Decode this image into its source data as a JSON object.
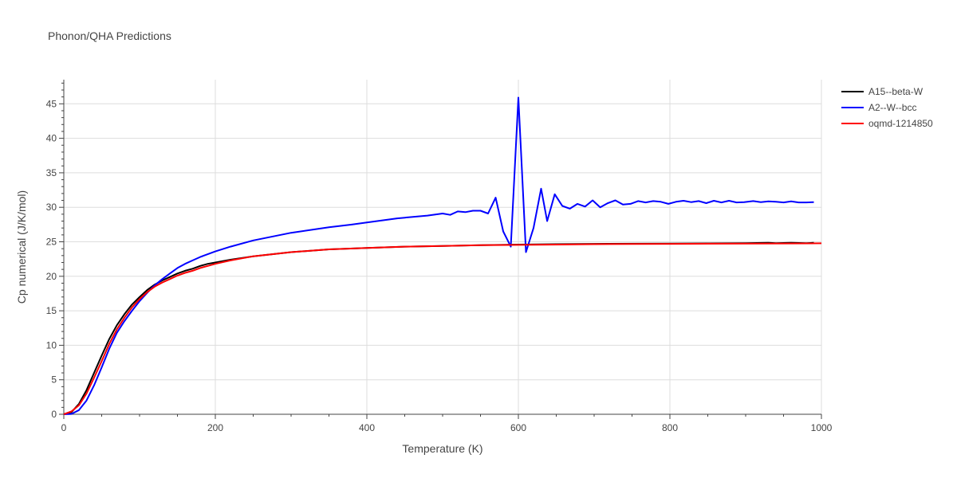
{
  "chart_data": {
    "type": "line",
    "title": "Phonon/QHA Predictions",
    "xlabel": "Temperature (K)",
    "ylabel": "Cp numerical (J/K/mol)",
    "xlim": [
      0,
      1000
    ],
    "ylim": [
      0,
      48.5
    ],
    "xticks": [
      0,
      200,
      400,
      600,
      800,
      1000
    ],
    "yticks": [
      0,
      5,
      10,
      15,
      20,
      25,
      30,
      35,
      40,
      45
    ],
    "grid": true,
    "legend_position": "top-right",
    "series": [
      {
        "name": "A15--beta-W",
        "color": "#000000",
        "x": [
          0,
          10,
          20,
          30,
          40,
          50,
          60,
          70,
          80,
          90,
          100,
          110,
          120,
          130,
          140,
          150,
          160,
          170,
          180,
          190,
          200,
          220,
          250,
          300,
          350,
          400,
          450,
          500,
          550,
          600,
          650,
          700,
          750,
          800,
          850,
          900,
          930,
          940,
          960,
          980,
          990
        ],
        "y": [
          0,
          0.3,
          1.5,
          3.5,
          6.0,
          8.5,
          10.9,
          12.9,
          14.5,
          15.9,
          17.0,
          18.0,
          18.8,
          19.4,
          19.9,
          20.4,
          20.8,
          21.1,
          21.5,
          21.8,
          22.0,
          22.4,
          22.9,
          23.5,
          23.9,
          24.1,
          24.3,
          24.4,
          24.5,
          24.6,
          24.65,
          24.7,
          24.72,
          24.75,
          24.77,
          24.8,
          24.85,
          24.8,
          24.85,
          24.8,
          24.85
        ]
      },
      {
        "name": "A2--W--bcc",
        "color": "#0000ff",
        "x": [
          0,
          10,
          20,
          30,
          40,
          50,
          60,
          70,
          80,
          90,
          100,
          110,
          120,
          130,
          140,
          150,
          160,
          170,
          180,
          190,
          200,
          220,
          250,
          300,
          350,
          380,
          400,
          440,
          480,
          500,
          510,
          520,
          530,
          540,
          550,
          560,
          570,
          580,
          590,
          600,
          610,
          620,
          630,
          638,
          648,
          658,
          668,
          678,
          688,
          698,
          708,
          718,
          728,
          738,
          748,
          758,
          768,
          778,
          788,
          798,
          808,
          818,
          828,
          838,
          848,
          858,
          868,
          878,
          888,
          898,
          910,
          920,
          930,
          940,
          950,
          960,
          970,
          980,
          990
        ],
        "y": [
          0,
          0.05,
          0.6,
          2.0,
          4.2,
          6.8,
          9.5,
          11.8,
          13.5,
          15.0,
          16.4,
          17.6,
          18.7,
          19.6,
          20.4,
          21.2,
          21.8,
          22.3,
          22.8,
          23.2,
          23.6,
          24.3,
          25.2,
          26.3,
          27.1,
          27.5,
          27.8,
          28.4,
          28.8,
          29.1,
          28.9,
          29.4,
          29.3,
          29.5,
          29.5,
          29.1,
          31.4,
          26.5,
          24.3,
          45.9,
          23.5,
          27.0,
          32.7,
          28.0,
          31.9,
          30.2,
          29.8,
          30.5,
          30.1,
          31.0,
          30.0,
          30.6,
          31.0,
          30.4,
          30.5,
          30.9,
          30.7,
          30.9,
          30.8,
          30.5,
          30.8,
          30.95,
          30.75,
          30.9,
          30.6,
          30.95,
          30.7,
          30.95,
          30.7,
          30.75,
          30.9,
          30.75,
          30.85,
          30.8,
          30.7,
          30.85,
          30.7,
          30.7,
          30.75
        ]
      },
      {
        "name": "oqmd-1214850",
        "color": "#ff0000",
        "x": [
          0,
          10,
          20,
          30,
          40,
          50,
          60,
          70,
          80,
          90,
          100,
          110,
          120,
          130,
          140,
          150,
          160,
          170,
          180,
          190,
          200,
          220,
          250,
          300,
          350,
          400,
          450,
          500,
          550,
          600,
          650,
          700,
          750,
          800,
          850,
          900,
          950,
          1000
        ],
        "y": [
          0,
          0.4,
          1.3,
          3.0,
          5.3,
          7.7,
          10.2,
          12.3,
          14.0,
          15.5,
          16.7,
          17.7,
          18.5,
          19.1,
          19.6,
          20.1,
          20.5,
          20.8,
          21.2,
          21.5,
          21.8,
          22.3,
          22.9,
          23.5,
          23.9,
          24.1,
          24.3,
          24.4,
          24.5,
          24.55,
          24.6,
          24.65,
          24.68,
          24.7,
          24.72,
          24.74,
          24.76,
          24.78
        ]
      }
    ]
  }
}
